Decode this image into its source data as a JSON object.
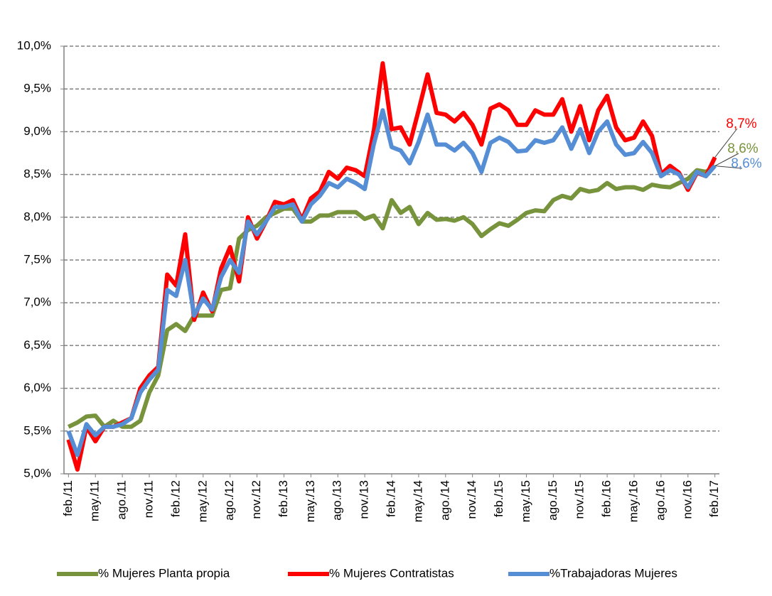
{
  "chart_data": {
    "type": "line",
    "categories": [
      "feb./11",
      null,
      null,
      "may./11",
      null,
      null,
      "ago./11",
      null,
      null,
      "nov./11",
      null,
      null,
      "feb./12",
      null,
      null,
      "may./12",
      null,
      null,
      "ago./12",
      null,
      null,
      "nov./12",
      null,
      null,
      "feb./13",
      null,
      null,
      "may./13",
      null,
      null,
      "ago./13",
      null,
      null,
      "nov./13",
      null,
      null,
      "feb./14",
      null,
      null,
      "may./14",
      null,
      null,
      "ago./14",
      null,
      null,
      "nov./14",
      null,
      null,
      "feb./15",
      null,
      null,
      "may./15",
      null,
      null,
      "ago./15",
      null,
      null,
      "nov./15",
      null,
      null,
      "feb./16",
      null,
      null,
      "may./16",
      null,
      null,
      "ago./16",
      null,
      null,
      "nov./16",
      null,
      null,
      "feb./17"
    ],
    "series": [
      {
        "name": "% Mujeres Planta propia",
        "color": "#77933c",
        "values": [
          5.55,
          5.6,
          5.67,
          5.68,
          5.55,
          5.62,
          5.55,
          5.55,
          5.62,
          5.95,
          6.15,
          6.68,
          6.75,
          6.67,
          6.85,
          6.85,
          6.85,
          7.15,
          7.17,
          7.75,
          7.85,
          7.9,
          8.0,
          8.05,
          8.1,
          8.1,
          7.95,
          7.95,
          8.02,
          8.02,
          8.06,
          8.06,
          8.06,
          7.98,
          8.02,
          7.87,
          8.2,
          8.05,
          8.12,
          7.92,
          8.05,
          7.97,
          7.98,
          7.96,
          8.0,
          7.92,
          7.78,
          7.86,
          7.93,
          7.9,
          7.97,
          8.05,
          8.08,
          8.07,
          8.2,
          8.25,
          8.22,
          8.33,
          8.3,
          8.32,
          8.4,
          8.33,
          8.35,
          8.35,
          8.32,
          8.38,
          8.36,
          8.35,
          8.4,
          8.45,
          8.55,
          8.53,
          8.6
        ],
        "value_labels": [
          null,
          null,
          null,
          null,
          null,
          null,
          null,
          null,
          null,
          null,
          null,
          null,
          null,
          null,
          null,
          null,
          null,
          null,
          null,
          null,
          null,
          null,
          null,
          null,
          null,
          null,
          null,
          null,
          null,
          null,
          null,
          null,
          null,
          null,
          null,
          null,
          null,
          null,
          null,
          null,
          null,
          null,
          null,
          null,
          null,
          null,
          null,
          null,
          null,
          null,
          null,
          null,
          null,
          null,
          null,
          null,
          null,
          null,
          null,
          null,
          null,
          null,
          null,
          null,
          null,
          null,
          null,
          null,
          null,
          null,
          null,
          null,
          "8,6%"
        ]
      },
      {
        "name": "% Mujeres Contratistas",
        "color": "#ff0000",
        "values": [
          5.4,
          5.05,
          5.55,
          5.38,
          5.55,
          5.55,
          5.6,
          5.65,
          6.0,
          6.15,
          6.25,
          7.33,
          7.2,
          7.8,
          6.8,
          7.12,
          6.9,
          7.4,
          7.65,
          7.25,
          8.0,
          7.75,
          7.95,
          8.18,
          8.15,
          8.2,
          7.97,
          8.22,
          8.3,
          8.53,
          8.45,
          8.58,
          8.55,
          8.48,
          9.0,
          9.8,
          9.03,
          9.05,
          8.85,
          9.25,
          9.67,
          9.22,
          9.2,
          9.12,
          9.22,
          9.08,
          8.85,
          9.27,
          9.32,
          9.25,
          9.08,
          9.08,
          9.25,
          9.2,
          9.2,
          9.38,
          9.0,
          9.3,
          8.9,
          9.25,
          9.42,
          9.05,
          8.9,
          8.93,
          9.12,
          8.95,
          8.5,
          8.6,
          8.52,
          8.32,
          8.52,
          8.48,
          8.7
        ],
        "value_labels": [
          null,
          null,
          null,
          null,
          null,
          null,
          null,
          null,
          null,
          null,
          null,
          null,
          null,
          null,
          null,
          null,
          null,
          null,
          null,
          null,
          null,
          null,
          null,
          null,
          null,
          null,
          null,
          null,
          null,
          null,
          null,
          null,
          null,
          null,
          null,
          null,
          null,
          null,
          null,
          null,
          null,
          null,
          null,
          null,
          null,
          null,
          null,
          null,
          null,
          null,
          null,
          null,
          null,
          null,
          null,
          null,
          null,
          null,
          null,
          null,
          null,
          null,
          null,
          null,
          null,
          null,
          null,
          null,
          null,
          null,
          null,
          null,
          "8,7%"
        ]
      },
      {
        "name": "%Trabajadoras Mujeres",
        "color": "#558ed5",
        "values": [
          5.5,
          5.22,
          5.58,
          5.45,
          5.55,
          5.55,
          5.58,
          5.65,
          5.95,
          6.1,
          6.22,
          7.15,
          7.08,
          7.5,
          6.85,
          7.05,
          6.92,
          7.3,
          7.5,
          7.35,
          7.95,
          7.8,
          7.95,
          8.12,
          8.12,
          8.15,
          7.95,
          8.15,
          8.25,
          8.4,
          8.35,
          8.45,
          8.4,
          8.33,
          8.85,
          9.25,
          8.82,
          8.78,
          8.63,
          8.88,
          9.2,
          8.85,
          8.85,
          8.78,
          8.87,
          8.75,
          8.53,
          8.87,
          8.93,
          8.88,
          8.77,
          8.78,
          8.9,
          8.87,
          8.9,
          9.05,
          8.8,
          9.03,
          8.75,
          9.0,
          9.12,
          8.85,
          8.73,
          8.75,
          8.88,
          8.75,
          8.48,
          8.55,
          8.5,
          8.35,
          8.53,
          8.48,
          8.6
        ],
        "value_labels": [
          null,
          null,
          null,
          null,
          null,
          null,
          null,
          null,
          null,
          null,
          null,
          null,
          null,
          null,
          null,
          null,
          null,
          null,
          null,
          null,
          null,
          null,
          null,
          null,
          null,
          null,
          null,
          null,
          null,
          null,
          null,
          null,
          null,
          null,
          null,
          null,
          null,
          null,
          null,
          null,
          null,
          null,
          null,
          null,
          null,
          null,
          null,
          null,
          null,
          null,
          null,
          null,
          null,
          null,
          null,
          null,
          null,
          null,
          null,
          null,
          null,
          null,
          null,
          null,
          null,
          null,
          null,
          null,
          null,
          null,
          null,
          null,
          "8,6%"
        ]
      }
    ],
    "ylim": [
      5.0,
      10.0
    ],
    "yticks": [
      {
        "value": 5.0,
        "label": "5,0%"
      },
      {
        "value": 5.5,
        "label": "5,5%"
      },
      {
        "value": 6.0,
        "label": "6,0%"
      },
      {
        "value": 6.5,
        "label": "6,5%"
      },
      {
        "value": 7.0,
        "label": "7,0%"
      },
      {
        "value": 7.5,
        "label": "7,5%"
      },
      {
        "value": 8.0,
        "label": "8,0%"
      },
      {
        "value": 8.5,
        "label": "8,5%"
      },
      {
        "value": 9.0,
        "label": "9,0%"
      },
      {
        "value": 9.5,
        "label": "9,5%"
      },
      {
        "value": 10.0,
        "label": "10,0%"
      }
    ],
    "grid": true,
    "legend": "bottom"
  }
}
